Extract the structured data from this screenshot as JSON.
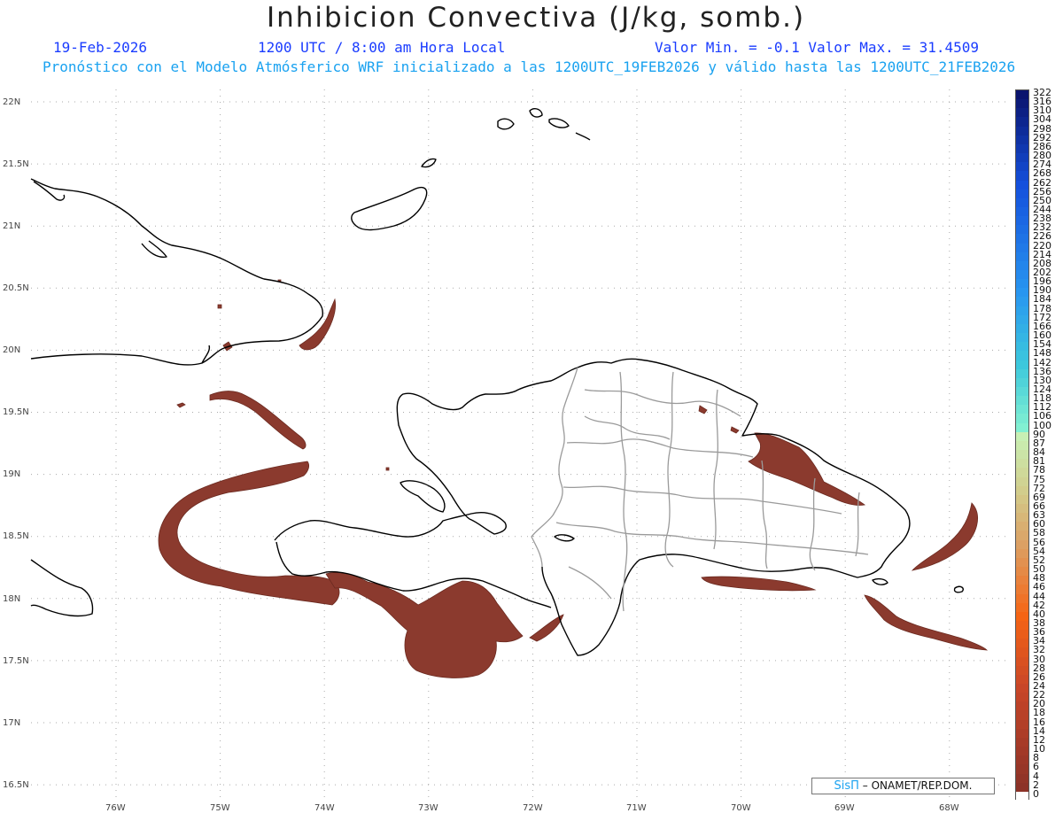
{
  "header": {
    "title": "Inhibicion Convectiva (J/kg, somb.)",
    "date": "19-Feb-2026",
    "time": "1200 UTC / 8:00 am Hora Local",
    "range": "Valor Min. = -0.1  Valor Max. = 31.4509",
    "description": "Pronóstico con el Modelo Atmósferico WRF inicializado a las 1200UTC_19FEB2026 y válido hasta las  1200UTC_21FEB2026"
  },
  "axes": {
    "lat_labels": [
      "22N",
      "21.5N",
      "21N",
      "20.5N",
      "20N",
      "19.5N",
      "19N",
      "18.5N",
      "18N",
      "17.5N",
      "17N",
      "16.5N"
    ],
    "lon_labels": [
      "76W",
      "75W",
      "74W",
      "73W",
      "72W",
      "71W",
      "70W",
      "69W",
      "68W"
    ]
  },
  "colorbar": {
    "labels": [
      "322",
      "316",
      "310",
      "304",
      "298",
      "292",
      "286",
      "280",
      "274",
      "268",
      "262",
      "256",
      "250",
      "244",
      "238",
      "232",
      "226",
      "220",
      "214",
      "208",
      "202",
      "196",
      "190",
      "184",
      "178",
      "172",
      "166",
      "160",
      "154",
      "148",
      "142",
      "136",
      "130",
      "124",
      "118",
      "112",
      "106",
      "100",
      "90",
      "87",
      "84",
      "81",
      "78",
      "75",
      "72",
      "69",
      "66",
      "63",
      "60",
      "58",
      "56",
      "54",
      "52",
      "50",
      "48",
      "46",
      "44",
      "42",
      "40",
      "38",
      "36",
      "34",
      "32",
      "30",
      "28",
      "26",
      "24",
      "22",
      "20",
      "18",
      "16",
      "14",
      "12",
      "10",
      "8",
      "6",
      "4",
      "2",
      "0"
    ]
  },
  "colors": {
    "cin_fill": "#8b3a2e",
    "coast": "#000000",
    "province_borders": "#9a9a9a",
    "title_blue": "#1a3cff",
    "subtitle_cyan": "#1aa2f0"
  },
  "credit": {
    "logo": "SisΠ",
    "org": "– ONAMET/REP.DOM."
  }
}
